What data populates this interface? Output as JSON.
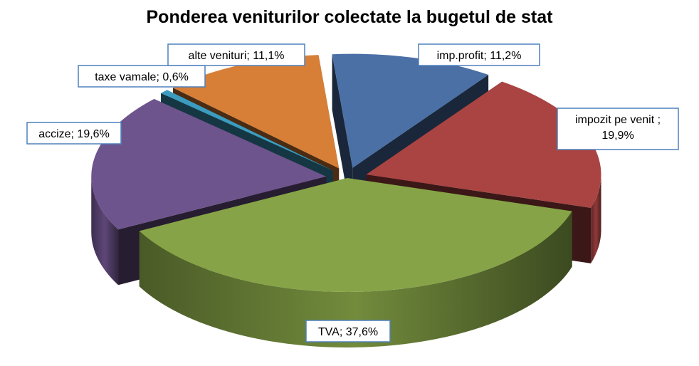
{
  "chart_data": {
    "type": "pie",
    "title": "Ponderea veniturilor colectate la bugetul de stat",
    "slices": [
      {
        "name": "imp.profit",
        "value": 11.2,
        "label": "imp.profit; 11,2%",
        "color": "#4A70A6"
      },
      {
        "name": "impozit pe venit",
        "value": 19.9,
        "label_lines": [
          "impozit pe venit ;",
          "19,9%"
        ],
        "color": "#A94442"
      },
      {
        "name": "TVA",
        "value": 37.6,
        "label": "TVA; 37,6%",
        "color": "#86A447"
      },
      {
        "name": "accize",
        "value": 19.6,
        "label": "accize; 19,6%",
        "color": "#6E548D"
      },
      {
        "name": "taxe vamale",
        "value": 0.6,
        "label": "taxe vamale; 0,6%",
        "color": "#3C9CC0"
      },
      {
        "name": "alte venituri",
        "value": 11.1,
        "label": "alte venituri; 11,1%",
        "color": "#D77F37"
      }
    ],
    "legend": "none",
    "style": "3d-exploded"
  }
}
